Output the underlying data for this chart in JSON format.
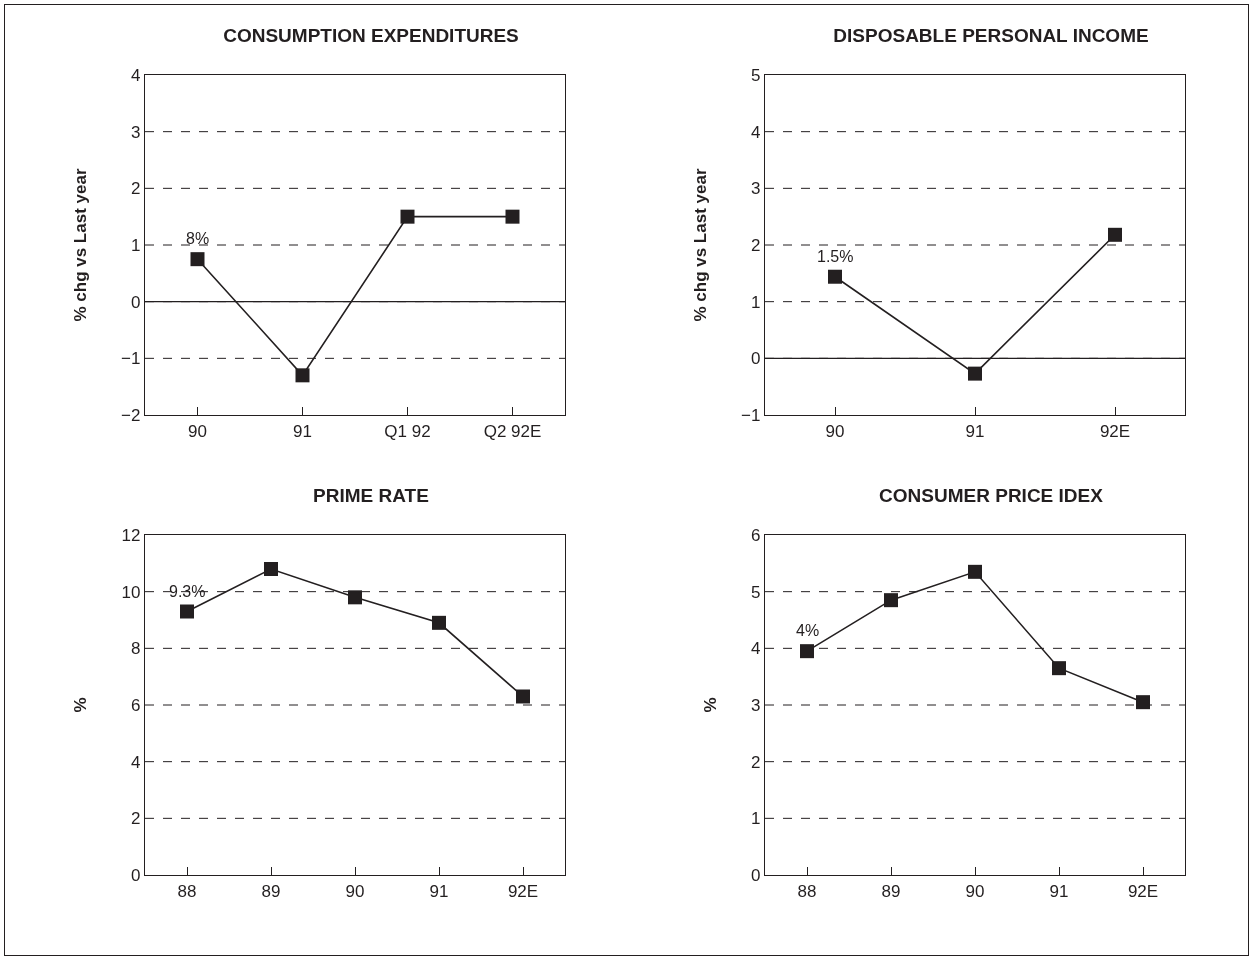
{
  "chart_data": [
    {
      "type": "line",
      "title": "CONSUMPTION EXPENDITURES",
      "ylabel": "% chg vs Last year",
      "categories": [
        "90",
        "91",
        "Q1 92",
        "Q2 92E"
      ],
      "series": [
        {
          "color": "#231f20",
          "values": [
            0.75,
            -1.3,
            1.5,
            1.5
          ]
        }
      ],
      "ylim": [
        -2,
        4
      ],
      "yticks": [
        -2,
        -1,
        0,
        1,
        2,
        3,
        4
      ],
      "grid": "y",
      "marker": "square",
      "line_style": "solid",
      "ref_lines": [
        {
          "axis": "y",
          "value": 0,
          "line_style": "solid"
        }
      ],
      "annotations": [
        {
          "text": "8%",
          "x": "90",
          "y": 0.75
        }
      ]
    },
    {
      "type": "line",
      "title": "DISPOSABLE PERSONAL INCOME",
      "ylabel": "% chg vs Last year",
      "categories": [
        "90",
        "91",
        "92E"
      ],
      "series": [
        {
          "color": "#231f20",
          "values": [
            1.44,
            -0.27,
            2.18
          ]
        }
      ],
      "ylim": [
        -1,
        5
      ],
      "yticks": [
        -1,
        0,
        1,
        2,
        3,
        4,
        5
      ],
      "grid": "y",
      "marker": "square",
      "line_style": "solid",
      "ref_lines": [
        {
          "axis": "y",
          "value": 0,
          "line_style": "solid"
        }
      ],
      "annotations": [
        {
          "text": "1.5%",
          "x": "90",
          "y": 1.44
        }
      ]
    },
    {
      "type": "line",
      "title": "PRIME RATE",
      "ylabel": "%",
      "categories": [
        "88",
        "89",
        "90",
        "91",
        "92E"
      ],
      "series": [
        {
          "color": "#231f20",
          "values": [
            9.3,
            10.8,
            9.8,
            8.9,
            6.3
          ]
        }
      ],
      "ylim": [
        0,
        12
      ],
      "yticks": [
        0,
        2,
        4,
        6,
        8,
        10,
        12
      ],
      "grid": "y",
      "marker": "square",
      "line_style": "solid",
      "annotations": [
        {
          "text": "9.3%",
          "x": "88",
          "y": 9.3
        }
      ]
    },
    {
      "type": "line",
      "title": "CONSUMER PRICE IDEX",
      "ylabel": "%",
      "categories": [
        "88",
        "89",
        "90",
        "91",
        "92E"
      ],
      "series": [
        {
          "color": "#231f20",
          "values": [
            3.95,
            4.85,
            5.35,
            3.65,
            3.05
          ]
        }
      ],
      "ylim": [
        0,
        6
      ],
      "yticks": [
        0,
        1,
        2,
        3,
        4,
        5,
        6
      ],
      "grid": "y",
      "marker": "square",
      "line_style": "solid",
      "annotations": [
        {
          "text": "4%",
          "x": "88",
          "y": 3.95
        }
      ]
    }
  ]
}
